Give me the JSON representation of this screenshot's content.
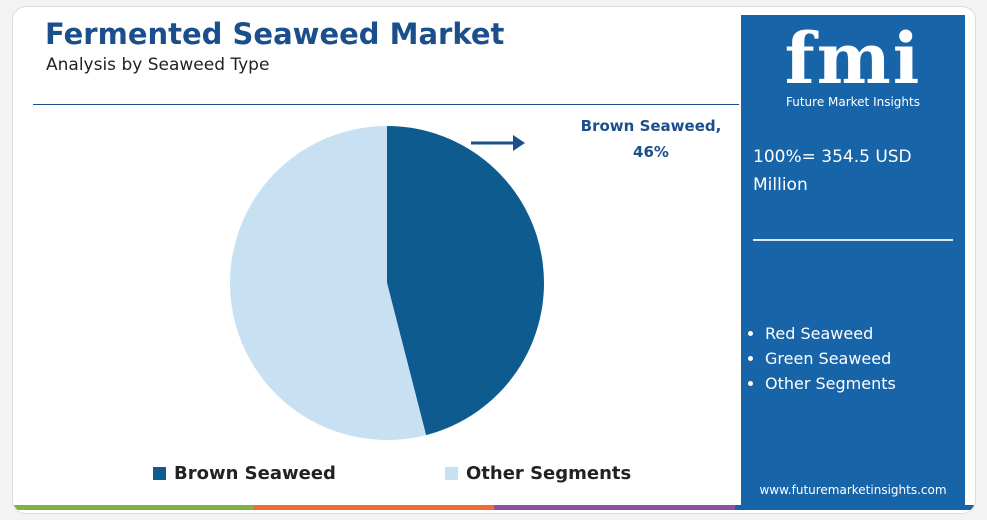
{
  "chart_data": {
    "type": "pie",
    "title": "Fermented Seaweed Market",
    "subtitle": "Analysis by Seaweed Type",
    "categories": [
      "Brown Seaweed",
      "Other Segments"
    ],
    "values": [
      46,
      54
    ],
    "value_labels": [
      "Brown Seaweed, 46%",
      null
    ],
    "colors": [
      "#0d5b8f",
      "#c7e1f3"
    ]
  },
  "sidebar": {
    "logo": "fmi",
    "brand": "Future Market Insights",
    "total": "100%= 354.5 USD Million",
    "segments": [
      "Red Seaweed",
      "Green Seaweed",
      "Other Segments"
    ],
    "website": "www.futuremarketinsights.com"
  }
}
